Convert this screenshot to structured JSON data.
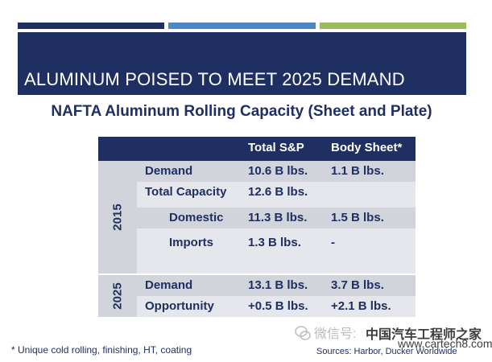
{
  "slide": {
    "title": "ALUMINUM POISED TO MEET 2025 DEMAND",
    "subtitle": "NAFTA Aluminum Rolling Capacity (Sheet and Plate)"
  },
  "table": {
    "headers": [
      "Total S&P",
      "Body Sheet*"
    ],
    "groups": [
      {
        "year": "2015",
        "rows": [
          {
            "label": "Demand",
            "total": "10.6 B lbs.",
            "body": "1.1 B lbs."
          },
          {
            "label": "Total Capacity",
            "total": "12.6 B lbs.",
            "body": ""
          },
          {
            "label": "Domestic",
            "total": "11.3 B lbs.",
            "body": "1.5 B lbs."
          },
          {
            "label": "Imports",
            "total": "1.3 B lbs.",
            "body": "-"
          }
        ]
      },
      {
        "year": "2025",
        "rows": [
          {
            "label": "Demand",
            "total": "13.1 B lbs.",
            "body": "3.7 B lbs."
          },
          {
            "label": "Opportunity",
            "total": "+0.5 B lbs.",
            "body": "+2.1 B lbs."
          }
        ]
      }
    ]
  },
  "footnote": "*  Unique cold rolling, finishing, HT, coating",
  "source": "Sources:  Harbor, Ducker Worldwide",
  "watermark": {
    "text": "微信号:",
    "brand": "中国汽车工程师之家",
    "site": "www.cartech8.com"
  },
  "colors": {
    "navy": "#1f2f62",
    "blue": "#4f86c6",
    "green": "#9bbb59"
  }
}
